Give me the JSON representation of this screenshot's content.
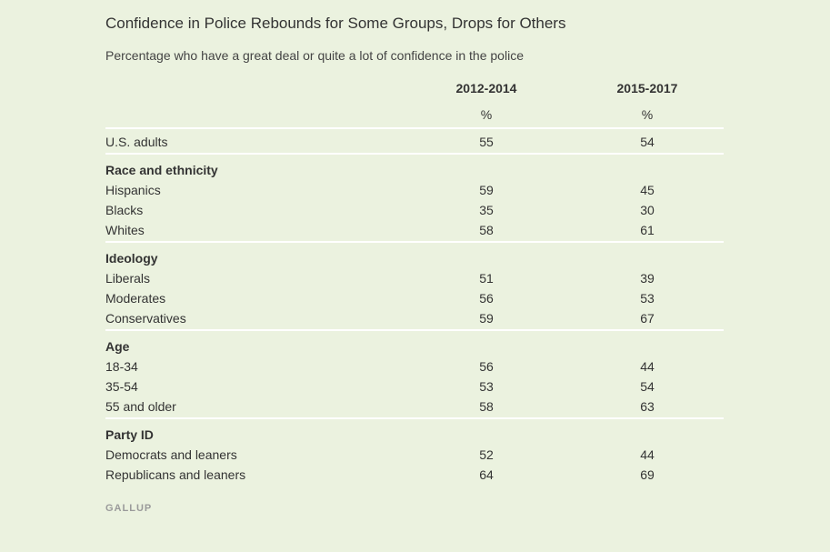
{
  "chart_data": {
    "type": "table",
    "title": "Confidence in Police Rebounds for Some Groups, Drops for Others",
    "subtitle": "Percentage who have a great deal or quite a lot of confidence in the police",
    "columns": [
      "2012-2014",
      "2015-2017"
    ],
    "units": [
      "%",
      "%"
    ],
    "overall": {
      "label": "U.S. adults",
      "values": [
        55,
        54
      ]
    },
    "sections": [
      {
        "title": "Race and ethnicity",
        "rows": [
          {
            "label": "Hispanics",
            "values": [
              59,
              45
            ]
          },
          {
            "label": "Blacks",
            "values": [
              35,
              30
            ]
          },
          {
            "label": "Whites",
            "values": [
              58,
              61
            ]
          }
        ]
      },
      {
        "title": "Ideology",
        "rows": [
          {
            "label": "Liberals",
            "values": [
              51,
              39
            ]
          },
          {
            "label": "Moderates",
            "values": [
              56,
              53
            ]
          },
          {
            "label": "Conservatives",
            "values": [
              59,
              67
            ]
          }
        ]
      },
      {
        "title": "Age",
        "rows": [
          {
            "label": "18-34",
            "values": [
              56,
              44
            ]
          },
          {
            "label": "35-54",
            "values": [
              53,
              54
            ]
          },
          {
            "label": "55 and older",
            "values": [
              58,
              63
            ]
          }
        ]
      },
      {
        "title": "Party ID",
        "rows": [
          {
            "label": "Democrats and leaners",
            "values": [
              52,
              44
            ]
          },
          {
            "label": "Republicans and leaners",
            "values": [
              64,
              69
            ]
          }
        ]
      }
    ],
    "source": "GALLUP"
  },
  "colors": {
    "background": "#ebf2df",
    "text": "#333333",
    "rule": "#ffffff",
    "source": "#9a9a9a"
  }
}
